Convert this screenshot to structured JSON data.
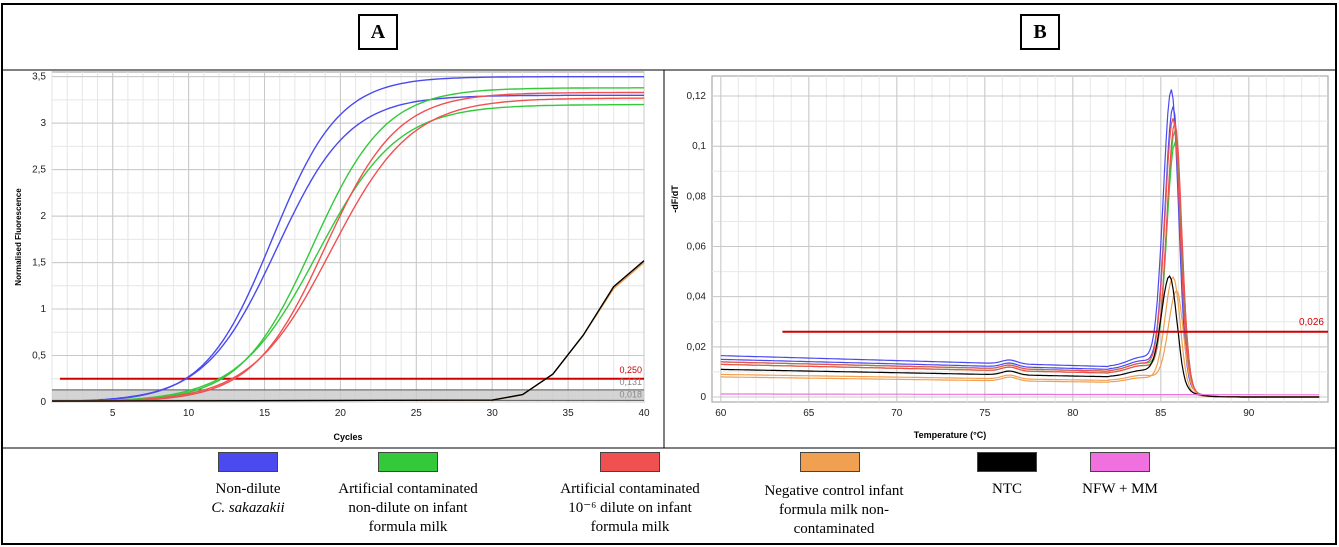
{
  "panels": {
    "a_label": "A",
    "b_label": "B"
  },
  "colors": {
    "nondilute": "#4a4af0",
    "artificial_nondilute": "#33c93a",
    "artificial_dilute": "#f05050",
    "negative_control": "#f0a050",
    "ntc": "#000000",
    "nfw_mm": "#f070e0",
    "threshold": "#d00000"
  },
  "legend": {
    "item1": {
      "line1": "Non-dilute",
      "line2": "C. sakazakii",
      "color_key": "nondilute"
    },
    "item2": {
      "line1": "Artificial  contaminated",
      "line2": "non-dilute on infant",
      "line3": "formula milk",
      "color_key": "artificial_nondilute"
    },
    "item3": {
      "line1": "Artificial  contaminated",
      "line2": "10⁻⁶ dilute on infant",
      "line3": "formula milk",
      "color_key": "artificial_dilute"
    },
    "item4": {
      "line1": "Negative  control infant",
      "line2": "formula milk non-",
      "line3": "contaminated",
      "color_key": "negative_control"
    },
    "item5": {
      "line1": "NTC",
      "color_key": "ntc"
    },
    "item6": {
      "line1": "NFW + MM",
      "color_key": "nfw_mm"
    }
  },
  "chart_data": [
    {
      "type": "line",
      "xlabel": "Cycles",
      "ylabel": "Normalised Fluorescence",
      "xlim": [
        1,
        40
      ],
      "ylim": [
        0,
        3.55
      ],
      "xticks": [
        "5",
        "10",
        "15",
        "20",
        "25",
        "30",
        "35",
        "40"
      ],
      "yticks": [
        "0",
        "0,5",
        "1",
        "1,5",
        "2",
        "2,5",
        "3",
        "3,5"
      ],
      "threshold_labels": [
        "0,250",
        "0,131",
        "0,018"
      ],
      "thresholds": [
        0.25,
        0.131,
        0.018
      ],
      "grid": true,
      "series": [
        {
          "color_key": "nondilute",
          "midpoint": 15.5,
          "slope": 0.45,
          "plateau": 3.5
        },
        {
          "color_key": "nondilute",
          "midpoint": 15.8,
          "slope": 0.42,
          "plateau": 3.3
        },
        {
          "color_key": "artificial_nondilute",
          "midpoint": 18.2,
          "slope": 0.42,
          "plateau": 3.38
        },
        {
          "color_key": "artificial_nondilute",
          "midpoint": 18.5,
          "slope": 0.38,
          "plateau": 3.2
        },
        {
          "color_key": "artificial_dilute",
          "midpoint": 19.0,
          "slope": 0.42,
          "plateau": 3.33
        },
        {
          "color_key": "artificial_dilute",
          "midpoint": 19.4,
          "slope": 0.38,
          "plateau": 3.27
        },
        {
          "color_key": "negative_control",
          "points": [
            [
              1,
              0.01
            ],
            [
              30,
              0.02
            ],
            [
              32,
              0.08
            ],
            [
              34,
              0.3
            ],
            [
              36,
              0.72
            ],
            [
              38,
              1.22
            ],
            [
              40,
              1.5
            ]
          ]
        },
        {
          "color_key": "ntc",
          "points": [
            [
              1,
              0.01
            ],
            [
              30,
              0.02
            ],
            [
              32,
              0.08
            ],
            [
              34,
              0.3
            ],
            [
              36,
              0.72
            ],
            [
              38,
              1.24
            ],
            [
              40,
              1.52
            ]
          ]
        }
      ]
    },
    {
      "type": "line",
      "xlabel": "Temperature (°C)",
      "ylabel": "-dF/dT",
      "xlim": [
        59.5,
        94.5
      ],
      "ylim": [
        -0.002,
        0.128
      ],
      "xticks": [
        "60",
        "65",
        "70",
        "75",
        "80",
        "85",
        "90"
      ],
      "yticks": [
        "0",
        "0,02",
        "0,04",
        "0,06",
        "0,08",
        "0,1",
        "0,12"
      ],
      "threshold_label": "0,026",
      "threshold": 0.026,
      "threshold_xrange": [
        63.5,
        94.5
      ],
      "grid": true,
      "series": [
        {
          "color_key": "nondilute",
          "base": 0.0165,
          "peak": 0.127,
          "peak_x": 85.6
        },
        {
          "color_key": "nondilute",
          "base": 0.015,
          "peak": 0.12,
          "peak_x": 85.7
        },
        {
          "color_key": "artificial_nondilute",
          "base": 0.014,
          "peak": 0.11,
          "peak_x": 85.8
        },
        {
          "color_key": "artificial_nondilute",
          "base": 0.013,
          "peak": 0.105,
          "peak_x": 85.8
        },
        {
          "color_key": "artificial_dilute",
          "base": 0.014,
          "peak": 0.115,
          "peak_x": 85.7
        },
        {
          "color_key": "artificial_dilute",
          "base": 0.013,
          "peak": 0.113,
          "peak_x": 85.8
        },
        {
          "color_key": "negative_control",
          "base": 0.008,
          "peak": 0.05,
          "peak_x": 85.7
        },
        {
          "color_key": "negative_control",
          "base": 0.009,
          "peak": 0.045,
          "peak_x": 85.9
        },
        {
          "color_key": "ntc",
          "base": 0.011,
          "peak": 0.051,
          "peak_x": 85.5
        },
        {
          "color_key": "nfw_mm",
          "base": 0.001,
          "peak": 0.001,
          "peak_x": 85.5
        }
      ]
    }
  ]
}
